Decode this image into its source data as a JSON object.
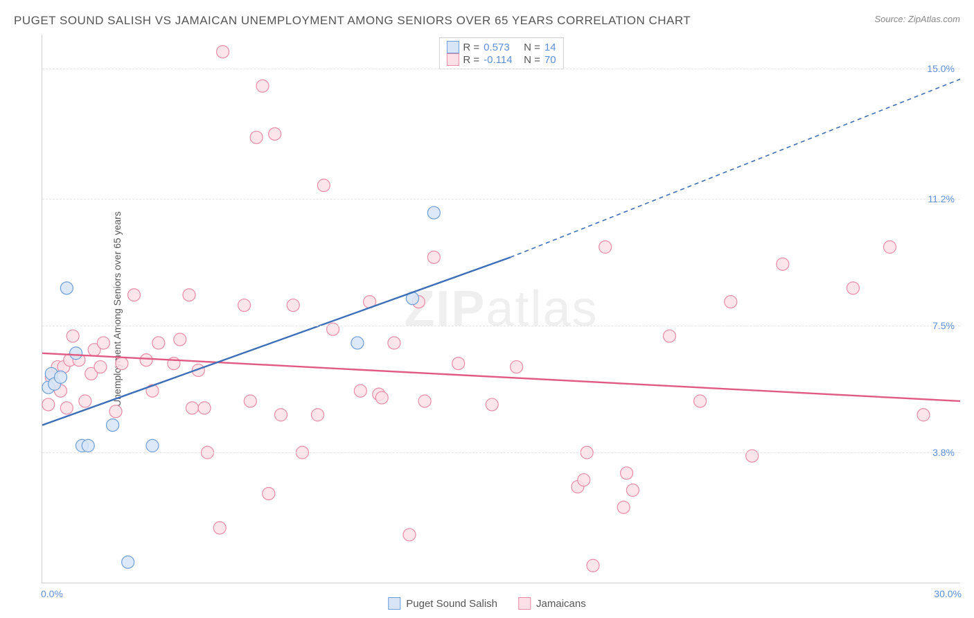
{
  "title": "PUGET SOUND SALISH VS JAMAICAN UNEMPLOYMENT AMONG SENIORS OVER 65 YEARS CORRELATION CHART",
  "source_label": "Source: ",
  "source_name": "ZipAtlas.com",
  "ylabel": "Unemployment Among Seniors over 65 years",
  "watermark_a": "ZIP",
  "watermark_b": "atlas",
  "chart": {
    "type": "scatter",
    "xlim": [
      0,
      30
    ],
    "ylim": [
      0,
      16
    ],
    "xtick_min_label": "0.0%",
    "xtick_max_label": "30.0%",
    "yticks": [
      3.8,
      7.5,
      11.2,
      15.0
    ],
    "ytick_labels": [
      "3.8%",
      "7.5%",
      "11.2%",
      "15.0%"
    ],
    "grid_color": "#e4e4e4",
    "border_color": "#d0d0d0",
    "background_color": "#ffffff",
    "tick_color": "#5b8fd8",
    "marker_radius": 9,
    "marker_stroke_width": 1.2,
    "line_width": 2.4,
    "series": [
      {
        "id": "puget",
        "label": "Puget Sound Salish",
        "fill": "#d7e5f7",
        "stroke": "#6a9ed8",
        "line_color": "#3d6fb8",
        "R": "0.573",
        "N": "14",
        "trend": {
          "x1": 0,
          "y1": 4.6,
          "x2": 15.3,
          "y2": 9.5,
          "dash_x2": 30,
          "dash_y2": 14.7
        },
        "points": [
          [
            0.2,
            5.7
          ],
          [
            0.3,
            6.1
          ],
          [
            0.4,
            5.8
          ],
          [
            0.6,
            6.0
          ],
          [
            0.8,
            8.6
          ],
          [
            1.1,
            6.7
          ],
          [
            1.3,
            4.0
          ],
          [
            1.5,
            4.0
          ],
          [
            2.3,
            4.6
          ],
          [
            2.8,
            0.6
          ],
          [
            3.6,
            4.0
          ],
          [
            10.3,
            7.0
          ],
          [
            12.1,
            8.3
          ],
          [
            12.8,
            10.8
          ]
        ]
      },
      {
        "id": "jamaicans",
        "label": "Jamaicans",
        "fill": "#fbe0e8",
        "stroke": "#e88aa5",
        "line_color": "#e15a84",
        "R": "-0.114",
        "N": "70",
        "trend": {
          "x1": 0,
          "y1": 6.7,
          "x2": 30,
          "y2": 5.3
        },
        "points": [
          [
            0.2,
            5.2
          ],
          [
            0.3,
            6.0
          ],
          [
            0.4,
            5.8
          ],
          [
            0.5,
            6.3
          ],
          [
            0.6,
            5.6
          ],
          [
            0.7,
            6.3
          ],
          [
            0.8,
            5.1
          ],
          [
            0.9,
            6.5
          ],
          [
            1.0,
            7.2
          ],
          [
            1.2,
            6.5
          ],
          [
            1.4,
            5.3
          ],
          [
            1.6,
            6.1
          ],
          [
            1.7,
            6.8
          ],
          [
            1.9,
            6.3
          ],
          [
            2.0,
            7.0
          ],
          [
            2.4,
            5.0
          ],
          [
            2.6,
            6.4
          ],
          [
            3.0,
            8.4
          ],
          [
            3.4,
            6.5
          ],
          [
            3.6,
            5.6
          ],
          [
            3.8,
            7.0
          ],
          [
            4.3,
            6.4
          ],
          [
            4.5,
            7.1
          ],
          [
            4.8,
            8.4
          ],
          [
            4.9,
            5.1
          ],
          [
            5.1,
            6.2
          ],
          [
            5.3,
            5.1
          ],
          [
            5.4,
            3.8
          ],
          [
            5.8,
            1.6
          ],
          [
            5.9,
            15.5
          ],
          [
            6.6,
            8.1
          ],
          [
            6.8,
            5.3
          ],
          [
            7.0,
            13
          ],
          [
            7.2,
            14.5
          ],
          [
            7.4,
            2.6
          ],
          [
            7.6,
            13.1
          ],
          [
            7.8,
            4.9
          ],
          [
            8.2,
            8.1
          ],
          [
            8.5,
            3.8
          ],
          [
            9.0,
            4.9
          ],
          [
            9.2,
            11.6
          ],
          [
            9.5,
            7.4
          ],
          [
            10.4,
            5.6
          ],
          [
            10.7,
            8.2
          ],
          [
            11.0,
            5.5
          ],
          [
            11.1,
            5.4
          ],
          [
            11.5,
            7.0
          ],
          [
            12.0,
            1.4
          ],
          [
            12.3,
            8.2
          ],
          [
            12.5,
            5.3
          ],
          [
            12.8,
            9.5
          ],
          [
            13.6,
            6.4
          ],
          [
            14.7,
            5.2
          ],
          [
            15.5,
            6.3
          ],
          [
            17.5,
            2.8
          ],
          [
            17.7,
            3.0
          ],
          [
            17.8,
            3.8
          ],
          [
            18.0,
            0.5
          ],
          [
            18.4,
            9.8
          ],
          [
            19.0,
            2.2
          ],
          [
            19.1,
            3.2
          ],
          [
            19.3,
            2.7
          ],
          [
            20.5,
            7.2
          ],
          [
            21.5,
            5.3
          ],
          [
            22.5,
            8.2
          ],
          [
            23.2,
            3.7
          ],
          [
            24.2,
            9.3
          ],
          [
            26.5,
            8.6
          ],
          [
            27.7,
            9.8
          ],
          [
            28.8,
            4.9
          ]
        ]
      }
    ]
  },
  "legend_top": {
    "R_label": "R  =",
    "N_label": "N  ="
  }
}
